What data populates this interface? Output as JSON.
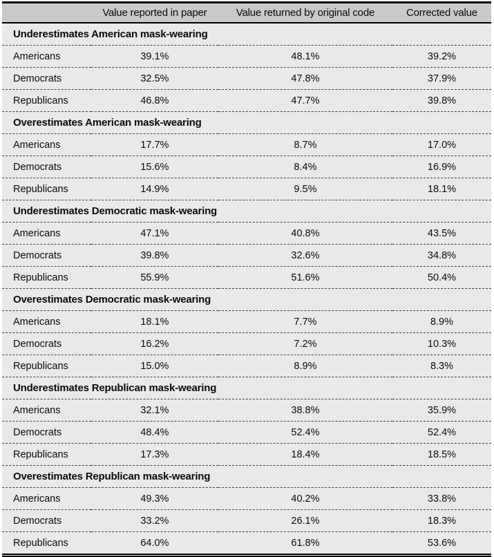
{
  "table": {
    "columns": [
      "",
      "Value reported in paper",
      "Value returned by original code",
      "Corrected value"
    ],
    "sections": [
      {
        "title": "Underestimates American mask-wearing",
        "rows": [
          [
            "Americans",
            "39.1%",
            "48.1%",
            "39.2%"
          ],
          [
            "Democrats",
            "32.5%",
            "47.8%",
            "37.9%"
          ],
          [
            "Republicans",
            "46.8%",
            "47.7%",
            "39.8%"
          ]
        ]
      },
      {
        "title": "Overestimates American mask-wearing",
        "rows": [
          [
            "Americans",
            "17.7%",
            "8.7%",
            "17.0%"
          ],
          [
            "Democrats",
            "15.6%",
            "8.4%",
            "16.9%"
          ],
          [
            "Republicans",
            "14.9%",
            "9.5%",
            "18.1%"
          ]
        ]
      },
      {
        "title": "Underestimates Democratic mask-wearing",
        "rows": [
          [
            "Americans",
            "47.1%",
            "40.8%",
            "43.5%"
          ],
          [
            "Democrats",
            "39.8%",
            "32.6%",
            "34.8%"
          ],
          [
            "Republicans",
            "55.9%",
            "51.6%",
            "50.4%"
          ]
        ]
      },
      {
        "title": "Overestimates Democratic mask-wearing",
        "rows": [
          [
            "Americans",
            "18.1%",
            "7.7%",
            "8.9%"
          ],
          [
            "Democrats",
            "16.2%",
            "7.2%",
            "10.3%"
          ],
          [
            "Republicans",
            "15.0%",
            "8.9%",
            "8.3%"
          ]
        ]
      },
      {
        "title": "Underestimates Republican mask-wearing",
        "rows": [
          [
            "Americans",
            "32.1%",
            "38.8%",
            "35.9%"
          ],
          [
            "Democrats",
            "48.4%",
            "52.4%",
            "52.4%"
          ],
          [
            "Republicans",
            "17.3%",
            "18.4%",
            "18.5%"
          ]
        ]
      },
      {
        "title": "Overestimates Republican mask-wearing",
        "rows": [
          [
            "Americans",
            "49.3%",
            "40.2%",
            "33.8%"
          ],
          [
            "Democrats",
            "33.2%",
            "26.1%",
            "18.3%"
          ],
          [
            "Republicans",
            "64.0%",
            "61.8%",
            "53.6%"
          ]
        ]
      }
    ]
  },
  "colors": {
    "header_background": "#c9c9c9",
    "body_background": "#e9e9e9",
    "solid_border": "#000000",
    "dashed_separator": "#3f3f3f"
  }
}
